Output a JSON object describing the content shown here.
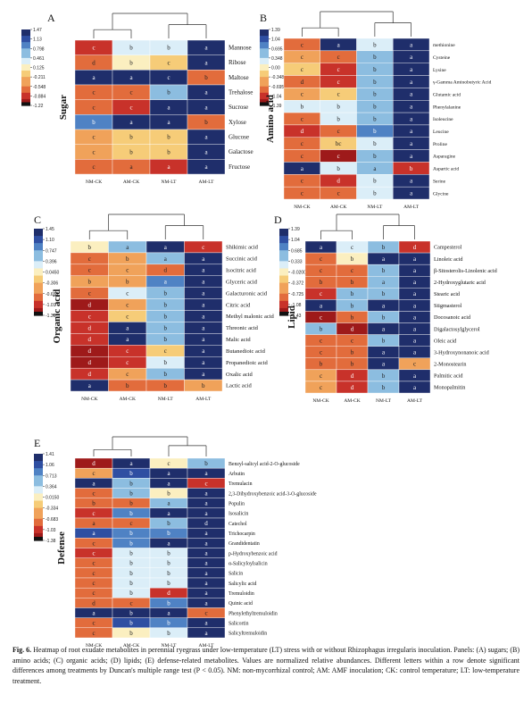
{
  "colors": {
    "scale": [
      "#181818",
      "#b01a1a",
      "#d93a26",
      "#ec7440",
      "#f2a35a",
      "#f7d684",
      "#fbf0c2",
      "#dfeef7",
      "#a7cde6",
      "#6ba5d6",
      "#3b6db9",
      "#2a4a9e",
      "#1f2e6b"
    ]
  },
  "columns": [
    "NM-CK",
    "AM-CK",
    "NM-LT",
    "AM-LT"
  ],
  "caption": {
    "label": "Fig. 6.",
    "text": "Heatmap of root exudate metabolites in perennial ryegrass under low-temperature (LT) stress with or without Rhizophagus irregularis inoculation. Panels: (A) sugars; (B) amino acids; (C) organic acids; (D) lipids; (E) defense-related metabolites. Values are normalized relative abundances. Different letters within a row denote significant differences among treatments by Duncan's multiple range test (P < 0.05). NM: non-mycorrhizal control; AM: AMF inoculation; CK: control temperature; LT: low-temperature treatment."
  },
  "chart_data": [
    {
      "type": "heatmap",
      "panel": "A",
      "ylabel": "Sugar",
      "colorbar_ticks": [
        "1.47",
        "1.13",
        "0.798",
        "0.461",
        "0.125",
        "-0.211",
        "-0.548",
        "-0.884",
        "-1.22"
      ],
      "columns": [
        "NM-CK",
        "AM-CK",
        "NM-LT",
        "AM-LT"
      ],
      "rows": [
        "Mannose",
        "Ribose",
        "Maltose",
        "Trehalose",
        "Sucrose",
        "Xylose",
        "Glucose",
        "Galactose",
        "Fructose"
      ],
      "values": [
        [
          -0.9,
          0.2,
          0.3,
          1.2
        ],
        [
          -0.8,
          0.1,
          -0.3,
          1.2
        ],
        [
          1.2,
          1.2,
          1.2,
          -0.6
        ],
        [
          -0.7,
          -0.8,
          0.6,
          1.1
        ],
        [
          -0.8,
          -0.9,
          1.2,
          1.2
        ],
        [
          0.8,
          1.2,
          1.2,
          -0.6
        ],
        [
          -0.5,
          -0.3,
          -0.3,
          1.2
        ],
        [
          -0.5,
          -0.3,
          -0.3,
          1.2
        ],
        [
          -0.7,
          -0.8,
          -0.9,
          1.2
        ]
      ],
      "letters": [
        [
          "c",
          "b",
          "b",
          "a"
        ],
        [
          "d",
          "b",
          "c",
          "a"
        ],
        [
          "a",
          "a",
          "c",
          "b"
        ],
        [
          "c",
          "c",
          "b",
          "a"
        ],
        [
          "c",
          "c",
          "a",
          "a"
        ],
        [
          "b",
          "a",
          "a",
          "b"
        ],
        [
          "c",
          "b",
          "b",
          "a"
        ],
        [
          "c",
          "b",
          "b",
          "a"
        ],
        [
          "c",
          "a",
          "a",
          "a"
        ]
      ]
    },
    {
      "type": "heatmap",
      "panel": "B",
      "ylabel": "Amino acid",
      "colorbar_ticks": [
        "1.39",
        "1.04",
        "0.695",
        "0.348",
        "0.00",
        "-0.348",
        "-0.695",
        "-1.04",
        "-1.39"
      ],
      "columns": [
        "NM-CK",
        "AM-CK",
        "NM-LT",
        "AM-LT"
      ],
      "rows": [
        "methionine",
        "Cysteine",
        "Lysine",
        "γ-Gamma Aminobutyric Acid",
        "Glutamic acid",
        "Phenylalanine",
        "Isoleucine",
        "Leucine",
        "Proline",
        "Asparagine",
        "Aspartic acid",
        "Serine",
        "Glycine"
      ],
      "values": [
        [
          -0.8,
          1.1,
          0.3,
          1.2
        ],
        [
          -0.5,
          -0.8,
          0.4,
          1.2
        ],
        [
          -0.3,
          -0.9,
          0.5,
          1.2
        ],
        [
          -0.6,
          -0.9,
          0.4,
          1.2
        ],
        [
          -0.5,
          -0.3,
          0.6,
          1.2
        ],
        [
          0.3,
          0.3,
          0.4,
          1.2
        ],
        [
          -0.8,
          0.2,
          0.5,
          1.2
        ],
        [
          -1.0,
          -0.6,
          0.7,
          1.2
        ],
        [
          -0.6,
          -0.3,
          0.3,
          1.2
        ],
        [
          -0.8,
          -1.1,
          0.4,
          1.2
        ],
        [
          1.1,
          0.3,
          0.6,
          -0.9
        ],
        [
          -0.7,
          -0.9,
          0.2,
          1.2
        ],
        [
          -0.8,
          -0.8,
          0.2,
          1.2
        ]
      ],
      "letters": [
        [
          "c",
          "a",
          "b",
          "a"
        ],
        [
          "c",
          "c",
          "b",
          "a"
        ],
        [
          "c",
          "c",
          "b",
          "a"
        ],
        [
          "d",
          "c",
          "b",
          "a"
        ],
        [
          "c",
          "c",
          "b",
          "a"
        ],
        [
          "b",
          "b",
          "b",
          "a"
        ],
        [
          "c",
          "b",
          "b",
          "a"
        ],
        [
          "d",
          "c",
          "b",
          "a"
        ],
        [
          "c",
          "bc",
          "b",
          "a"
        ],
        [
          "c",
          "c",
          "b",
          "a"
        ],
        [
          "a",
          "b",
          "a",
          "b"
        ],
        [
          "c",
          "d",
          "b",
          "a"
        ],
        [
          "c",
          "c",
          "b",
          "a"
        ]
      ]
    },
    {
      "type": "heatmap",
      "panel": "C",
      "ylabel": "Organic acid",
      "colorbar_ticks": [
        "1.45",
        "1.10",
        "0.747",
        "0.396",
        "0.0450",
        "-0.306",
        "-0.658",
        "-1.01",
        "-1.36"
      ],
      "columns": [
        "NM-CK",
        "AM-CK",
        "NM-LT",
        "AM-LT"
      ],
      "rows": [
        "Shikimic acid",
        "Succinic acid",
        "Isocitric acid",
        "Glyceric acid",
        "Galacturonic acid",
        "Citric acid",
        "Methyl malonic acid",
        "Threonic acid",
        "Malic acid",
        "Butanedioic acid",
        "Propanedioic acid",
        "Oxalic acid",
        "Lactic acid"
      ],
      "values": [
        [
          0.1,
          0.6,
          1.2,
          -0.9
        ],
        [
          -0.7,
          -0.5,
          0.5,
          1.2
        ],
        [
          -0.6,
          -0.4,
          -0.8,
          1.2
        ],
        [
          -0.5,
          -0.5,
          0.7,
          1.2
        ],
        [
          -0.6,
          0.2,
          0.5,
          1.2
        ],
        [
          -1.1,
          -0.4,
          0.5,
          1.2
        ],
        [
          -0.9,
          -0.3,
          0.6,
          1.2
        ],
        [
          -1.0,
          1.2,
          0.6,
          1.2
        ],
        [
          -1.0,
          1.2,
          0.6,
          1.2
        ],
        [
          -1.1,
          -0.9,
          -0.3,
          1.2
        ],
        [
          -1.1,
          -0.9,
          0.3,
          1.2
        ],
        [
          -1.0,
          -0.5,
          0.6,
          1.2
        ],
        [
          1.1,
          -0.6,
          -0.8,
          -0.5
        ]
      ],
      "letters": [
        [
          "b",
          "a",
          "a",
          "c"
        ],
        [
          "c",
          "b",
          "a",
          "a"
        ],
        [
          "c",
          "c",
          "d",
          "a"
        ],
        [
          "b",
          "b",
          "a",
          "a"
        ],
        [
          "c",
          "c",
          "b",
          "a"
        ],
        [
          "d",
          "c",
          "b",
          "a"
        ],
        [
          "c",
          "c",
          "b",
          "a"
        ],
        [
          "d",
          "a",
          "b",
          "a"
        ],
        [
          "d",
          "a",
          "b",
          "a"
        ],
        [
          "d",
          "c",
          "c",
          "a"
        ],
        [
          "d",
          "c",
          "b",
          "a"
        ],
        [
          "d",
          "c",
          "b",
          "a"
        ],
        [
          "a",
          "b",
          "b",
          "b"
        ]
      ]
    },
    {
      "type": "heatmap",
      "panel": "D",
      "ylabel": "Lipid",
      "colorbar_ticks": [
        "1.39",
        "1.04",
        "0.685",
        "0.333",
        "-0.0200",
        "-0.372",
        "-0.725",
        "-1.08",
        "-1.43"
      ],
      "columns": [
        "NM-CK",
        "AM-CK",
        "NM-LT",
        "AM-LT"
      ],
      "rows": [
        "Campesterol",
        "Linoleic acid",
        "β-Sitosterolis-Linolenic acid",
        "2-Hydroxyglutaric acid",
        "Stearic acid",
        "Stigmasterol",
        "Docosanoic acid",
        "Digalactosylglycerol",
        "Oleic acid",
        "3-Hydroxynonanoic acid",
        "2-Monostearin",
        "Palmitic acid",
        "Monopalmitin"
      ],
      "values": [
        [
          1.1,
          0.3,
          0.5,
          -0.9
        ],
        [
          -0.6,
          0.1,
          1.2,
          1.2
        ],
        [
          -0.8,
          -0.8,
          0.6,
          1.2
        ],
        [
          -0.8,
          -0.8,
          0.6,
          1.2
        ],
        [
          -1.0,
          0.5,
          0.5,
          1.2
        ],
        [
          1.1,
          0.6,
          1.2,
          1.2
        ],
        [
          -1.1,
          -0.6,
          0.5,
          1.2
        ],
        [
          0.5,
          -1.1,
          1.2,
          1.2
        ],
        [
          -0.8,
          -0.8,
          0.6,
          1.2
        ],
        [
          -0.8,
          -0.8,
          1.1,
          1.2
        ],
        [
          -0.8,
          -0.6,
          1.2,
          -0.5
        ],
        [
          -0.5,
          -0.9,
          0.6,
          1.2
        ],
        [
          -0.5,
          -0.9,
          0.6,
          1.2
        ]
      ],
      "letters": [
        [
          "a",
          "c",
          "b",
          "d"
        ],
        [
          "c",
          "b",
          "a",
          "a"
        ],
        [
          "c",
          "c",
          "b",
          "a"
        ],
        [
          "b",
          "b",
          "a",
          "a"
        ],
        [
          "c",
          "b",
          "b",
          "a"
        ],
        [
          "a",
          "b",
          "a",
          "a"
        ],
        [
          "c",
          "b",
          "b",
          "a"
        ],
        [
          "b",
          "d",
          "a",
          "a"
        ],
        [
          "c",
          "c",
          "b",
          "a"
        ],
        [
          "c",
          "b",
          "a",
          "a"
        ],
        [
          "b",
          "b",
          "a",
          "c"
        ],
        [
          "c",
          "d",
          "b",
          "a"
        ],
        [
          "c",
          "d",
          "b",
          "a"
        ]
      ]
    },
    {
      "type": "heatmap",
      "panel": "E",
      "ylabel": "Defense",
      "colorbar_ticks": [
        "1.41",
        "1.06",
        "0.713",
        "0.364",
        "0.0150",
        "-0.334",
        "-0.683",
        "-1.03",
        "-1.38"
      ],
      "columns": [
        "NM-CK",
        "AM-CK",
        "NM-LT",
        "AM-LT"
      ],
      "rows": [
        "Benzyl-salicyl acid-2-O-glucoside",
        "Arbutin",
        "Tremulacin",
        "2,3-Dihydroxybenzoic acid-3-O-glucoside",
        "Populin",
        "Isosalicin",
        "Catechol",
        "Trichocarpin",
        "Grandidentatin",
        "p-Hydroxybenzoic acid",
        "α-Salicyloylsalicin",
        "Salicin",
        "Salicylic acid",
        "Tremuloidin",
        "Quinic acid",
        "Phenylethyltremuloidin",
        "Salicortin",
        "Salicyltremuloidin"
      ],
      "values": [
        [
          -1.1,
          1.2,
          0.1,
          0.5
        ],
        [
          -0.5,
          0.9,
          1.2,
          1.2
        ],
        [
          1.1,
          0.4,
          1.1,
          -0.9
        ],
        [
          -0.7,
          0.6,
          0.1,
          1.2
        ],
        [
          -0.7,
          -0.6,
          0.5,
          1.2
        ],
        [
          -0.9,
          0.8,
          1.2,
          1.2
        ],
        [
          -0.6,
          -0.8,
          0.5,
          1.2
        ],
        [
          0.9,
          0.7,
          0.7,
          1.2
        ],
        [
          -0.8,
          0.8,
          1.2,
          1.2
        ],
        [
          -0.9,
          0.2,
          0.3,
          1.2
        ],
        [
          -0.8,
          0.3,
          0.3,
          1.2
        ],
        [
          -0.8,
          0.3,
          0.3,
          1.2
        ],
        [
          -0.8,
          0.3,
          0.3,
          1.2
        ],
        [
          -0.6,
          0.2,
          -0.9,
          1.2
        ],
        [
          -0.8,
          -0.6,
          0.7,
          1.2
        ],
        [
          1.1,
          1.1,
          1.2,
          -0.8
        ],
        [
          -0.8,
          0.9,
          0.7,
          1.2
        ],
        [
          -0.7,
          0.1,
          0.3,
          1.2
        ]
      ],
      "letters": [
        [
          "d",
          "a",
          "c",
          "b"
        ],
        [
          "c",
          "b",
          "a",
          "a"
        ],
        [
          "a",
          "b",
          "a",
          "c"
        ],
        [
          "c",
          "b",
          "b",
          "a"
        ],
        [
          "b",
          "b",
          "a",
          "a"
        ],
        [
          "c",
          "b",
          "a",
          "a"
        ],
        [
          "a",
          "c",
          "b",
          "d"
        ],
        [
          "a",
          "b",
          "b",
          "a"
        ],
        [
          "c",
          "b",
          "a",
          "a"
        ],
        [
          "c",
          "b",
          "b",
          "a"
        ],
        [
          "c",
          "b",
          "b",
          "a"
        ],
        [
          "c",
          "b",
          "b",
          "a"
        ],
        [
          "c",
          "b",
          "b",
          "a"
        ],
        [
          "c",
          "b",
          "d",
          "a"
        ],
        [
          "d",
          "c",
          "b",
          "a"
        ],
        [
          "a",
          "b",
          "a",
          "c"
        ],
        [
          "c",
          "b",
          "b",
          "a"
        ],
        [
          "c",
          "b",
          "b",
          "a"
        ]
      ]
    }
  ]
}
